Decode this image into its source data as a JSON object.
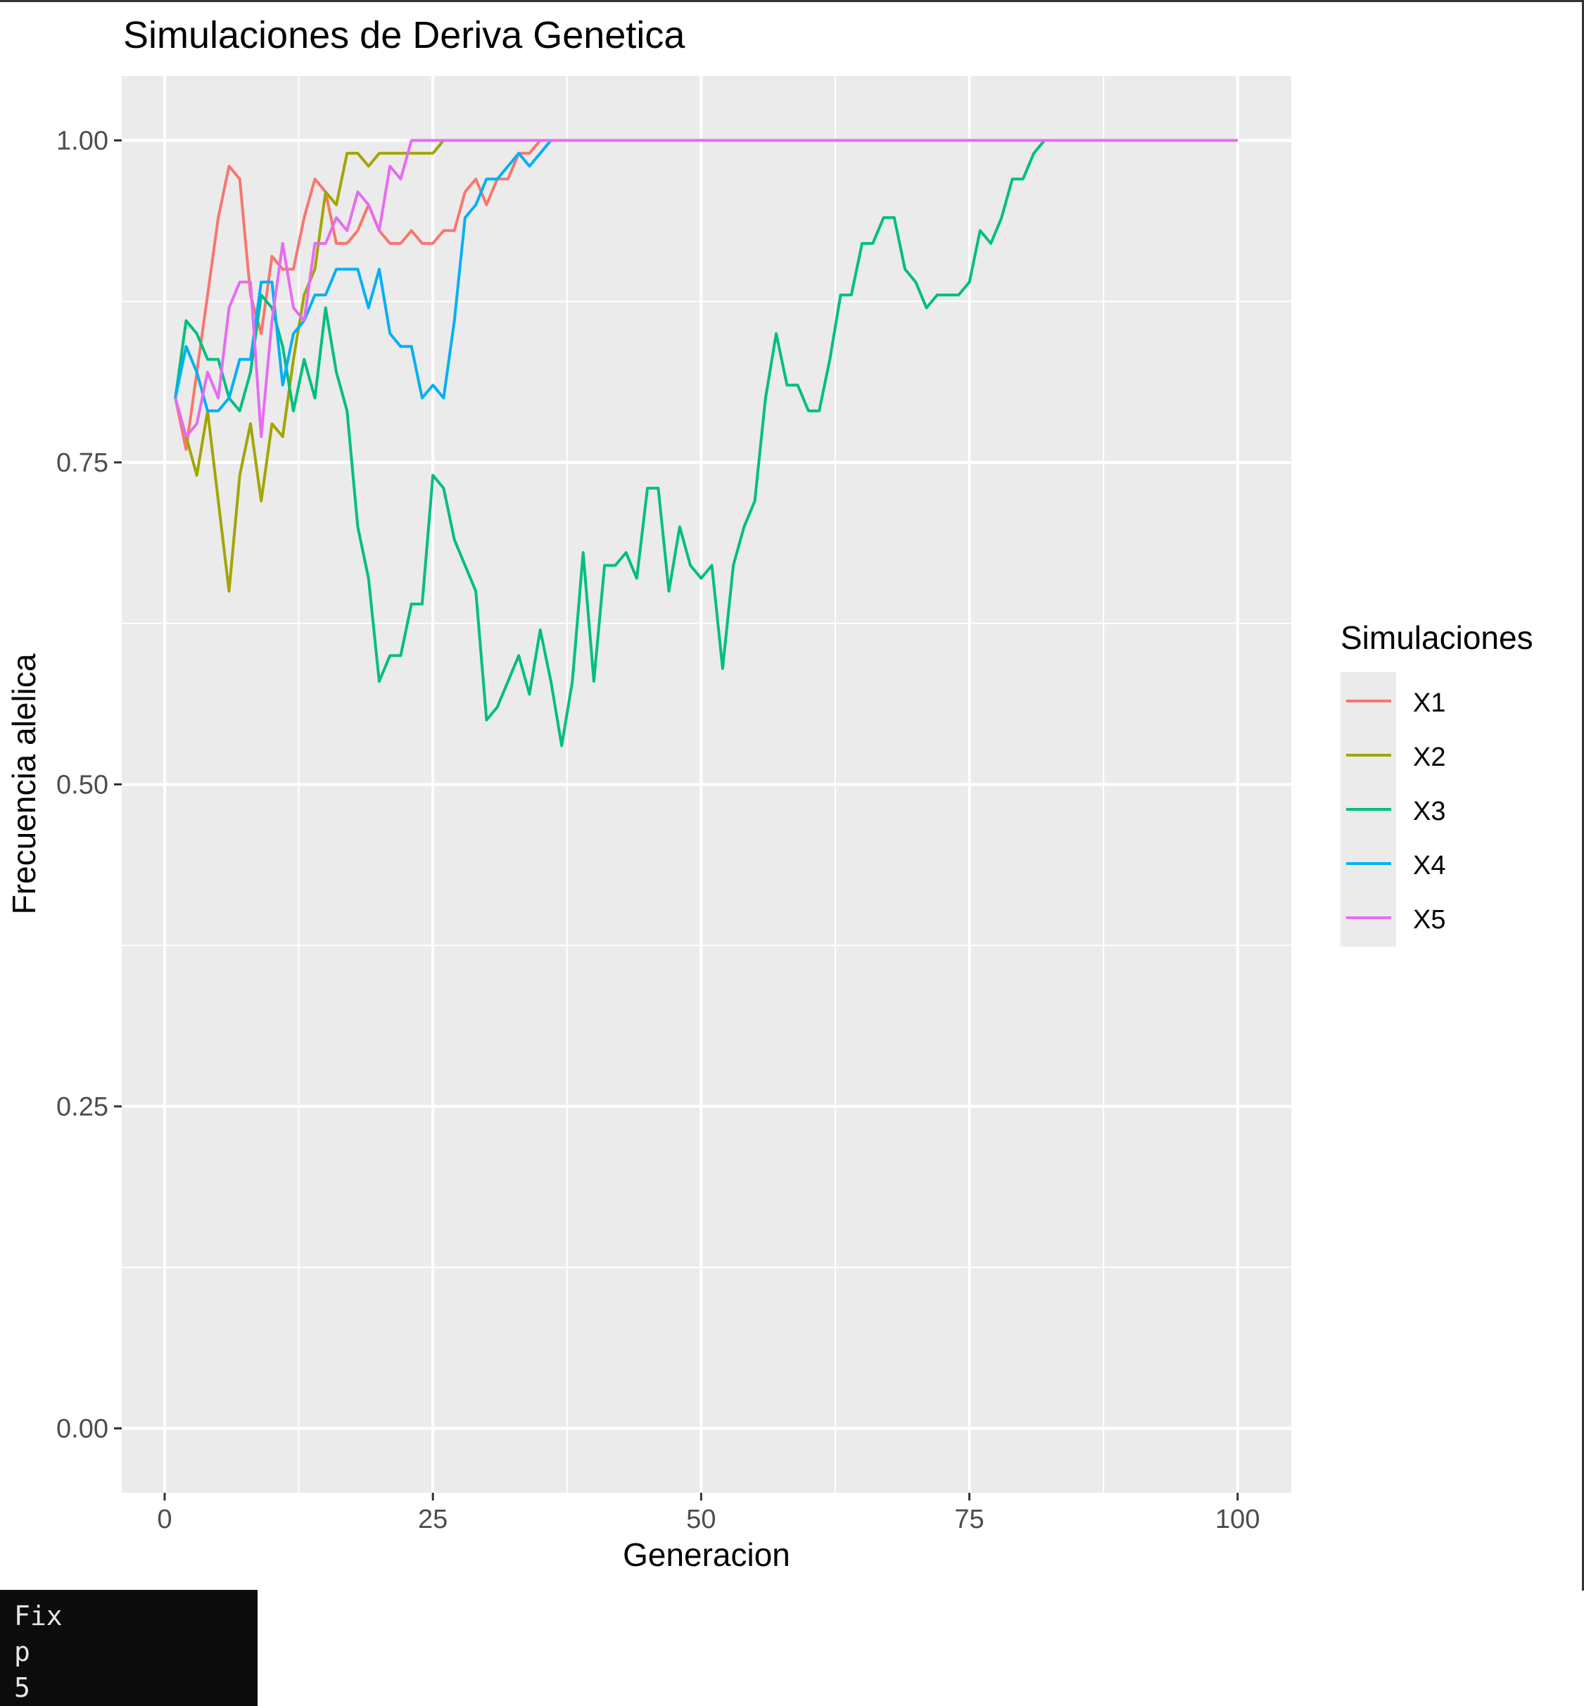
{
  "chart_data": {
    "type": "line",
    "title": "Simulaciones de Deriva Genetica",
    "xlabel": "Generacion",
    "ylabel": "Frecuencia alelica",
    "xlim": [
      -4,
      105
    ],
    "ylim": [
      -0.05,
      1.05
    ],
    "x_ticks": [
      0,
      25,
      50,
      75,
      100
    ],
    "y_ticks": [
      0.0,
      0.25,
      0.5,
      0.75,
      1.0
    ],
    "x_tick_labels": [
      "0",
      "25",
      "50",
      "75",
      "100"
    ],
    "y_tick_labels": [
      "0.00",
      "0.25",
      "0.50",
      "0.75",
      "1.00"
    ],
    "grid": true,
    "legend": {
      "title": "Simulaciones",
      "position": "right"
    },
    "x": [
      1,
      2,
      3,
      4,
      5,
      6,
      7,
      8,
      9,
      10,
      11,
      12,
      13,
      14,
      15,
      16,
      17,
      18,
      19,
      20,
      21,
      22,
      23,
      24,
      25,
      26,
      27,
      28,
      29,
      30,
      31,
      32,
      33,
      34,
      35,
      36,
      37,
      38,
      39,
      40,
      41,
      42,
      43,
      44,
      45,
      46,
      47,
      48,
      49,
      50,
      51,
      52,
      53,
      54,
      55,
      56,
      57,
      58,
      59,
      60,
      61,
      62,
      63,
      64,
      65,
      66,
      67,
      68,
      69,
      70,
      71,
      72,
      73,
      74,
      75,
      76,
      77,
      78,
      79,
      80,
      81,
      82,
      83,
      84,
      85,
      86,
      87,
      88,
      89,
      90,
      91,
      92,
      93,
      94,
      95,
      96,
      97,
      98,
      99,
      100
    ],
    "series": [
      {
        "name": "X1",
        "color": "#F8766D",
        "values": [
          0.8,
          0.76,
          0.82,
          0.88,
          0.94,
          0.98,
          0.97,
          0.88,
          0.85,
          0.91,
          0.9,
          0.9,
          0.94,
          0.97,
          0.96,
          0.92,
          0.92,
          0.93,
          0.95,
          0.93,
          0.92,
          0.92,
          0.93,
          0.92,
          0.92,
          0.93,
          0.93,
          0.96,
          0.97,
          0.95,
          0.97,
          0.97,
          0.99,
          0.99,
          1.0,
          1.0,
          1.0,
          1.0,
          1.0,
          1.0,
          1.0,
          1.0,
          1.0,
          1.0,
          1.0,
          1.0,
          1.0,
          1.0,
          1.0,
          1.0,
          1.0,
          1.0,
          1.0,
          1.0,
          1.0,
          1.0,
          1.0,
          1.0,
          1.0,
          1.0,
          1.0,
          1.0,
          1.0,
          1.0,
          1.0,
          1.0,
          1.0,
          1.0,
          1.0,
          1.0,
          1.0,
          1.0,
          1.0,
          1.0,
          1.0,
          1.0,
          1.0,
          1.0,
          1.0,
          1.0,
          1.0,
          1.0,
          1.0,
          1.0,
          1.0,
          1.0,
          1.0,
          1.0,
          1.0,
          1.0,
          1.0,
          1.0,
          1.0,
          1.0,
          1.0,
          1.0,
          1.0,
          1.0,
          1.0,
          1.0
        ]
      },
      {
        "name": "X2",
        "color": "#A3A500",
        "values": [
          0.8,
          0.77,
          0.74,
          0.79,
          0.72,
          0.65,
          0.74,
          0.78,
          0.72,
          0.78,
          0.77,
          0.83,
          0.88,
          0.9,
          0.96,
          0.95,
          0.99,
          0.99,
          0.98,
          0.99,
          0.99,
          0.99,
          0.99,
          0.99,
          0.99,
          1.0,
          1.0,
          1.0,
          1.0,
          1.0,
          1.0,
          1.0,
          1.0,
          1.0,
          1.0,
          1.0,
          1.0,
          1.0,
          1.0,
          1.0,
          1.0,
          1.0,
          1.0,
          1.0,
          1.0,
          1.0,
          1.0,
          1.0,
          1.0,
          1.0,
          1.0,
          1.0,
          1.0,
          1.0,
          1.0,
          1.0,
          1.0,
          1.0,
          1.0,
          1.0,
          1.0,
          1.0,
          1.0,
          1.0,
          1.0,
          1.0,
          1.0,
          1.0,
          1.0,
          1.0,
          1.0,
          1.0,
          1.0,
          1.0,
          1.0,
          1.0,
          1.0,
          1.0,
          1.0,
          1.0,
          1.0,
          1.0,
          1.0,
          1.0,
          1.0,
          1.0,
          1.0,
          1.0,
          1.0,
          1.0,
          1.0,
          1.0,
          1.0,
          1.0,
          1.0,
          1.0,
          1.0,
          1.0,
          1.0,
          1.0
        ]
      },
      {
        "name": "X3",
        "color": "#00BF7D",
        "values": [
          0.8,
          0.86,
          0.85,
          0.83,
          0.83,
          0.8,
          0.79,
          0.82,
          0.88,
          0.87,
          0.84,
          0.79,
          0.83,
          0.8,
          0.87,
          0.82,
          0.79,
          0.7,
          0.66,
          0.58,
          0.6,
          0.6,
          0.64,
          0.64,
          0.74,
          0.73,
          0.69,
          0.67,
          0.65,
          0.55,
          0.56,
          0.58,
          0.6,
          0.57,
          0.62,
          0.58,
          0.53,
          0.58,
          0.68,
          0.58,
          0.67,
          0.67,
          0.68,
          0.66,
          0.73,
          0.73,
          0.65,
          0.7,
          0.67,
          0.66,
          0.67,
          0.59,
          0.67,
          0.7,
          0.72,
          0.8,
          0.85,
          0.81,
          0.81,
          0.79,
          0.79,
          0.83,
          0.88,
          0.88,
          0.92,
          0.92,
          0.94,
          0.94,
          0.9,
          0.89,
          0.87,
          0.88,
          0.88,
          0.88,
          0.89,
          0.93,
          0.92,
          0.94,
          0.97,
          0.97,
          0.99,
          1.0,
          1.0,
          1.0,
          1.0,
          1.0,
          1.0,
          1.0,
          1.0,
          1.0,
          1.0,
          1.0,
          1.0,
          1.0,
          1.0,
          1.0,
          1.0,
          1.0,
          1.0,
          1.0
        ]
      },
      {
        "name": "X4",
        "color": "#00B0F6",
        "values": [
          0.8,
          0.84,
          0.82,
          0.79,
          0.79,
          0.8,
          0.83,
          0.83,
          0.89,
          0.89,
          0.81,
          0.85,
          0.86,
          0.88,
          0.88,
          0.9,
          0.9,
          0.9,
          0.87,
          0.9,
          0.85,
          0.84,
          0.84,
          0.8,
          0.81,
          0.8,
          0.86,
          0.94,
          0.95,
          0.97,
          0.97,
          0.98,
          0.99,
          0.98,
          0.99,
          1.0,
          1.0,
          1.0,
          1.0,
          1.0,
          1.0,
          1.0,
          1.0,
          1.0,
          1.0,
          1.0,
          1.0,
          1.0,
          1.0,
          1.0,
          1.0,
          1.0,
          1.0,
          1.0,
          1.0,
          1.0,
          1.0,
          1.0,
          1.0,
          1.0,
          1.0,
          1.0,
          1.0,
          1.0,
          1.0,
          1.0,
          1.0,
          1.0,
          1.0,
          1.0,
          1.0,
          1.0,
          1.0,
          1.0,
          1.0,
          1.0,
          1.0,
          1.0,
          1.0,
          1.0,
          1.0,
          1.0,
          1.0,
          1.0,
          1.0,
          1.0,
          1.0,
          1.0,
          1.0,
          1.0,
          1.0,
          1.0,
          1.0,
          1.0,
          1.0,
          1.0,
          1.0,
          1.0,
          1.0,
          1.0
        ]
      },
      {
        "name": "X5",
        "color": "#E76BF3",
        "values": [
          0.8,
          0.77,
          0.78,
          0.82,
          0.8,
          0.87,
          0.89,
          0.89,
          0.77,
          0.86,
          0.92,
          0.87,
          0.86,
          0.92,
          0.92,
          0.94,
          0.93,
          0.96,
          0.95,
          0.93,
          0.98,
          0.97,
          1.0,
          1.0,
          1.0,
          1.0,
          1.0,
          1.0,
          1.0,
          1.0,
          1.0,
          1.0,
          1.0,
          1.0,
          1.0,
          1.0,
          1.0,
          1.0,
          1.0,
          1.0,
          1.0,
          1.0,
          1.0,
          1.0,
          1.0,
          1.0,
          1.0,
          1.0,
          1.0,
          1.0,
          1.0,
          1.0,
          1.0,
          1.0,
          1.0,
          1.0,
          1.0,
          1.0,
          1.0,
          1.0,
          1.0,
          1.0,
          1.0,
          1.0,
          1.0,
          1.0,
          1.0,
          1.0,
          1.0,
          1.0,
          1.0,
          1.0,
          1.0,
          1.0,
          1.0,
          1.0,
          1.0,
          1.0,
          1.0,
          1.0,
          1.0,
          1.0,
          1.0,
          1.0,
          1.0,
          1.0,
          1.0,
          1.0,
          1.0,
          1.0,
          1.0,
          1.0,
          1.0,
          1.0,
          1.0,
          1.0,
          1.0,
          1.0,
          1.0,
          1.0
        ]
      }
    ]
  },
  "console": {
    "lines": [
      "Fix",
      "p",
      "5"
    ]
  }
}
